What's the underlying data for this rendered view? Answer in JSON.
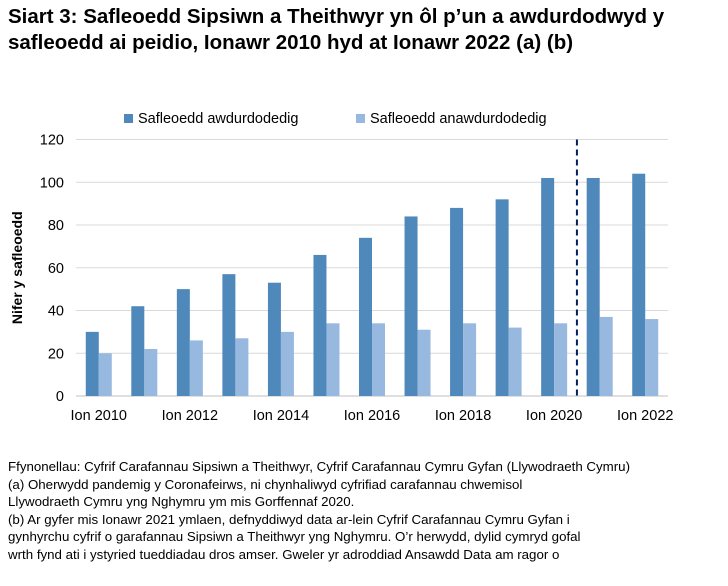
{
  "title": "Siart 3: Safleoedd Sipsiwn a Theithwyr yn ôl p’un a awdurdodwyd y safleoedd ai peidio, Ionawr 2010 hyd at Ionawr 2022 (a) (b)",
  "chart_data": {
    "type": "bar",
    "title": "Siart 3: Safleoedd Sipsiwn a Theithwyr yn ôl p’un a awdurdodwyd y safleoedd ai peidio, Ionawr 2010 hyd at Ionawr 2022 (a) (b)",
    "categories": [
      "2010",
      "2011",
      "2012",
      "2013",
      "2014",
      "2015",
      "2016",
      "2017",
      "2018",
      "2019",
      "2020",
      "2021",
      "2022"
    ],
    "tick_labels": [
      "Ion  2010",
      "",
      "Ion 2012",
      "",
      "Ion 2014",
      "",
      "Ion 2016",
      "",
      "Ion 2018",
      "",
      "Ion 2020",
      "",
      "Ion 2022"
    ],
    "series": [
      {
        "name": "Safleoedd awdurdodedig",
        "color": "#4f88bb",
        "values": [
          30,
          42,
          50,
          57,
          53,
          66,
          74,
          84,
          88,
          92,
          102,
          102,
          104
        ]
      },
      {
        "name": "Safleoedd anawdurdodedig",
        "color": "#97b8df",
        "values": [
          20,
          22,
          26,
          27,
          30,
          34,
          34,
          31,
          34,
          32,
          34,
          37,
          36
        ]
      }
    ],
    "xlabel": "",
    "ylabel": "Nifer y safleoedd",
    "ylim": [
      0,
      120
    ],
    "yticks": [
      0,
      20,
      40,
      60,
      80,
      100,
      120
    ],
    "grid": true,
    "legend": "top",
    "annotation": {
      "type": "dashed-vertical-line",
      "between": [
        "2020",
        "2021"
      ],
      "color": "#002060"
    }
  },
  "notes": [
    "Ffynonellau: Cyfrif Carafannau Sipsiwn a Theithwyr, Cyfrif Carafannau Cymru Gyfan (Llywodraeth Cymru)",
    "(a) Oherwydd pandemig y Coronafeirws, ni chynhaliwyd cyfrifiad carafannau chwemisol",
    "Llywodraeth Cymru yng Nghymru ym mis Gorffennaf 2020.",
    "(b) Ar gyfer mis Ionawr 2021 ymlaen, defnyddiwyd data ar-lein Cyfrif Carafannau Cymru Gyfan i",
    "gynhyrchu cyfrif o garafannau Sipsiwn a Theithwyr yng Nghymru. O’r herwydd, dylid cymryd gofal",
    "wrth fynd ati i ystyried tueddiadau dros amser. Gweler yr adroddiad Ansawdd Data am ragor o"
  ]
}
